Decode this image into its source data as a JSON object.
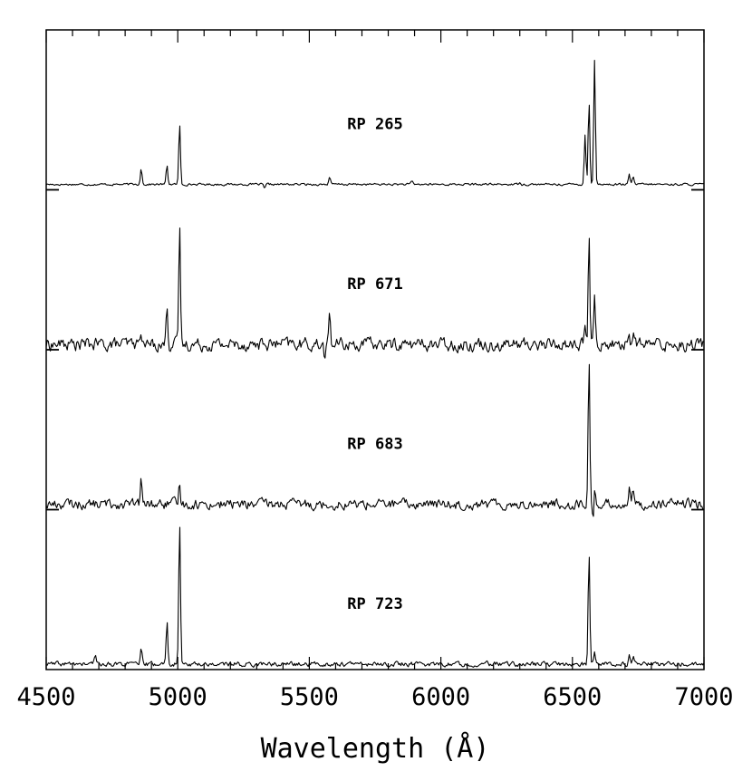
{
  "chart_data": {
    "type": "line",
    "xlabel": "Wavelength (Å)",
    "xlim": [
      4500,
      7000
    ],
    "x_ticks": [
      "4500",
      "5000",
      "5500",
      "6000",
      "6500",
      "7000"
    ],
    "x_minor_step": 100,
    "panels": [
      {
        "name": "RP 265",
        "noise": 0.006,
        "lines": [
          [
            4861,
            0.11
          ],
          [
            4959,
            0.13
          ],
          [
            5007,
            0.4
          ],
          [
            5577,
            0.05
          ],
          [
            5890,
            0.02
          ],
          [
            6300,
            0.02
          ],
          [
            6548,
            0.33
          ],
          [
            6563,
            0.55
          ],
          [
            6584,
            0.82
          ],
          [
            6716,
            0.06
          ],
          [
            6731,
            0.05
          ]
        ],
        "dips": [
          [
            5330,
            -0.03
          ]
        ]
      },
      {
        "name": "RP 671",
        "noise": 0.035,
        "lines": [
          [
            4861,
            0.1
          ],
          [
            4959,
            0.28
          ],
          [
            5007,
            0.78
          ],
          [
            5577,
            0.22
          ],
          [
            6548,
            0.1
          ],
          [
            6563,
            0.7
          ],
          [
            6584,
            0.35
          ],
          [
            6716,
            0.08
          ],
          [
            6731,
            0.06
          ]
        ],
        "dips": [
          [
            5560,
            -0.1
          ]
        ]
      },
      {
        "name": "RP 683",
        "noise": 0.028,
        "lines": [
          [
            4861,
            0.15
          ],
          [
            5007,
            0.15
          ],
          [
            6563,
            0.95
          ],
          [
            6584,
            0.14
          ],
          [
            6716,
            0.12
          ],
          [
            6731,
            0.08
          ]
        ],
        "dips": [
          [
            6580,
            -0.12
          ]
        ]
      },
      {
        "name": "RP 723",
        "noise": 0.013,
        "lines": [
          [
            4686,
            0.06
          ],
          [
            4861,
            0.09
          ],
          [
            4959,
            0.28
          ],
          [
            5007,
            0.95
          ],
          [
            6563,
            0.74
          ],
          [
            6584,
            0.08
          ],
          [
            6716,
            0.05
          ],
          [
            6731,
            0.04
          ]
        ],
        "dips": []
      }
    ]
  }
}
